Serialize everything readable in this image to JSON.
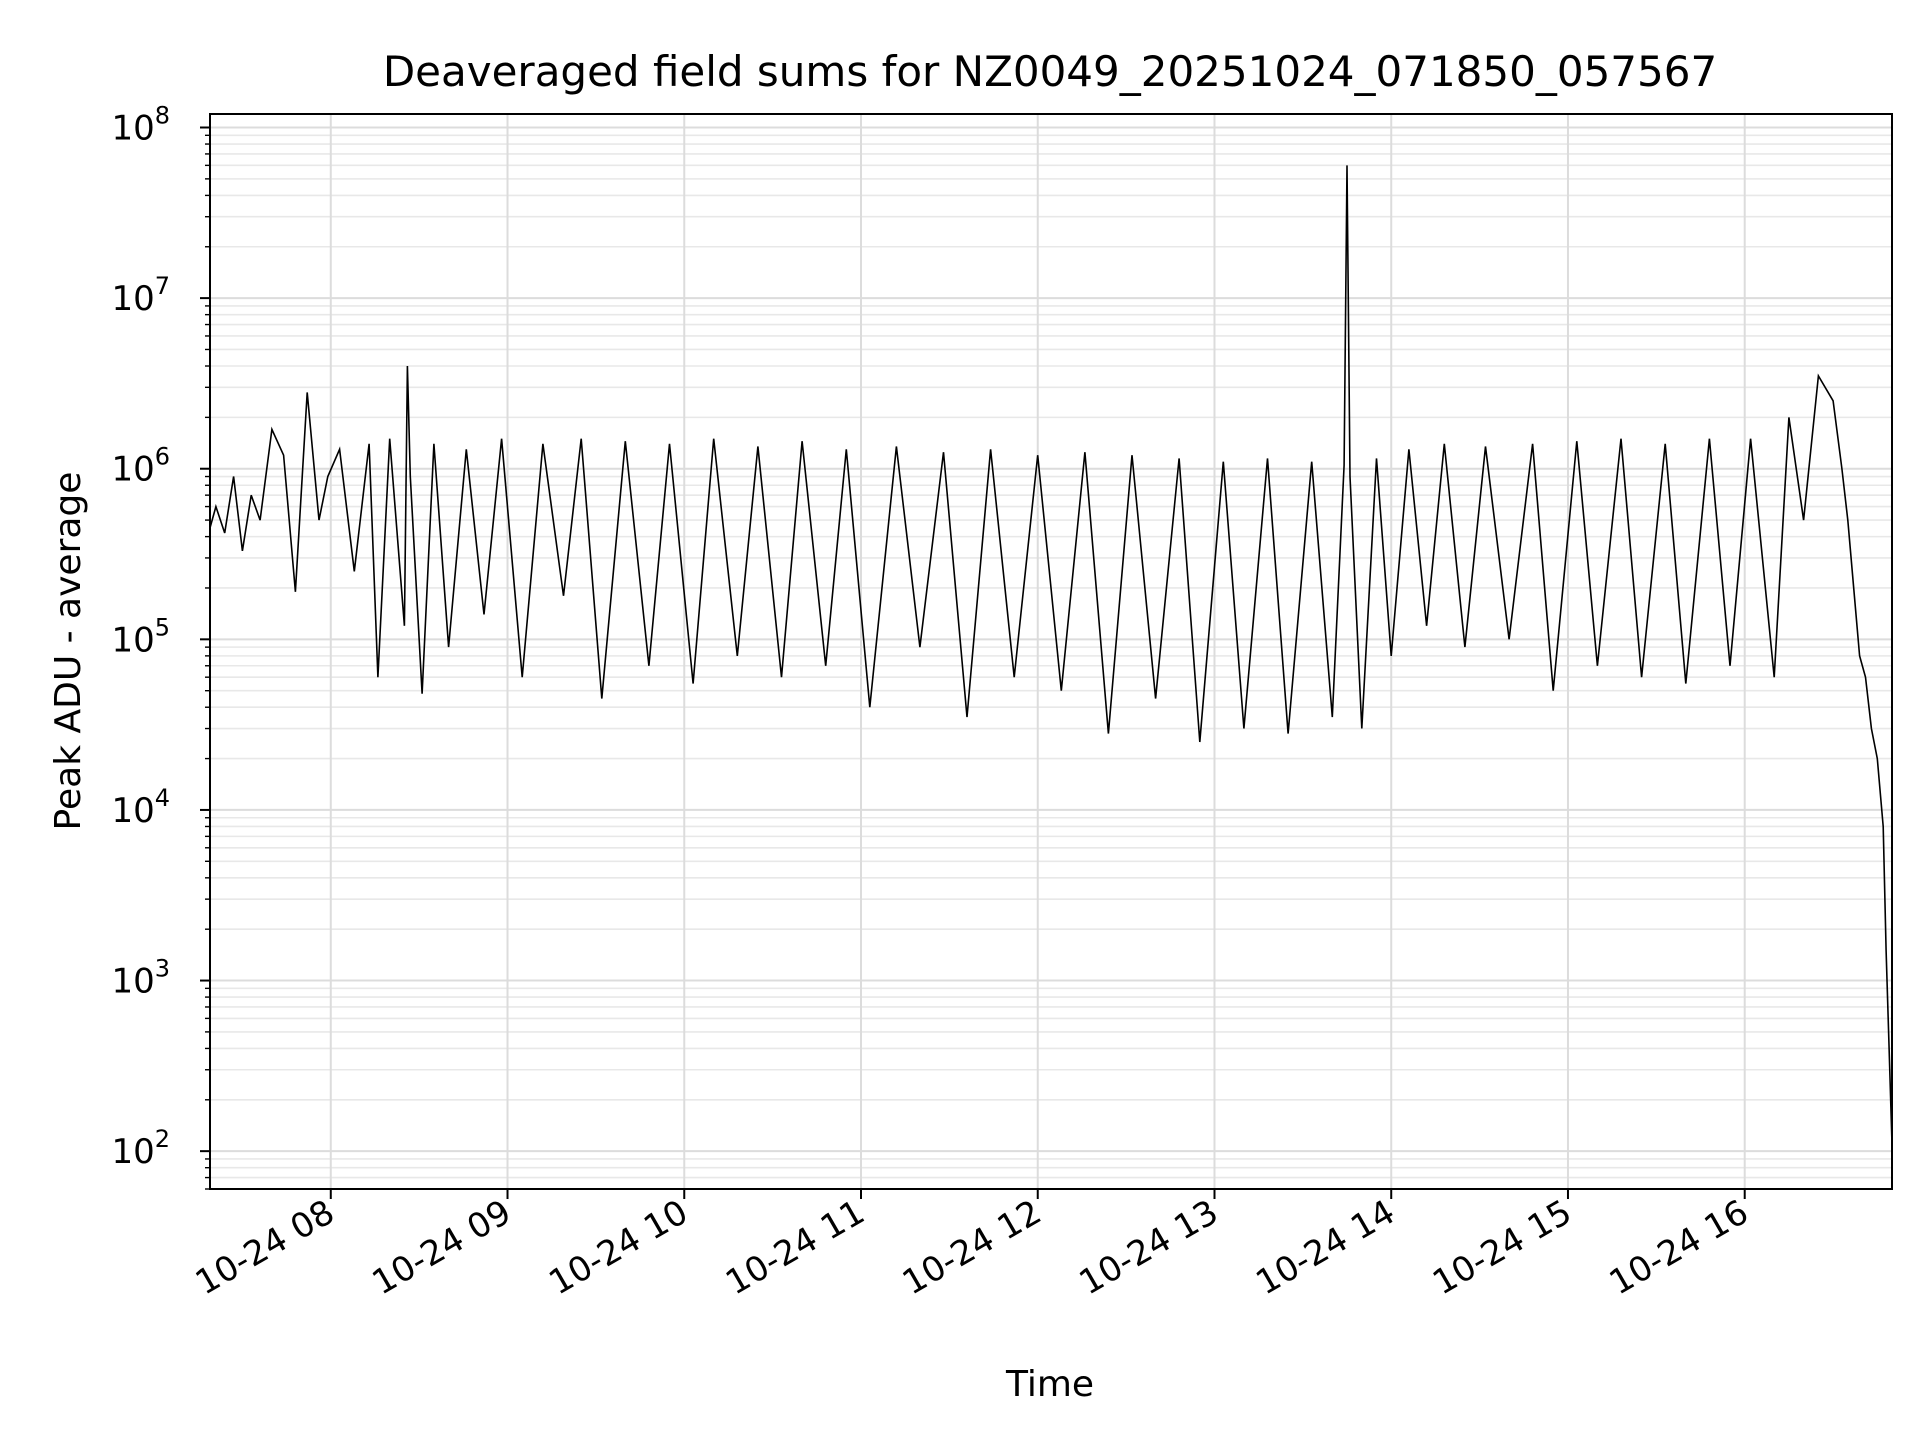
{
  "chart_data": {
    "type": "line",
    "title": "Deaveraged field sums for NZ0049_20251024_071850_057567",
    "xlabel": "Time",
    "ylabel": "Peak ADU - average",
    "y_scale": "log",
    "ylim": [
      60,
      120000000
    ],
    "xlim": [
      "2025-10-24 07:19",
      "2025-10-24 16:50"
    ],
    "grid": true,
    "legend": "none",
    "line_color": "#000000",
    "x_tick_labels": [
      "10-24 08",
      "10-24 09",
      "10-24 10",
      "10-24 11",
      "10-24 12",
      "10-24 13",
      "10-24 14",
      "10-24 15",
      "10-24 16"
    ],
    "y_tick_labels": [
      {
        "value": 100,
        "base": "10",
        "exp": "2"
      },
      {
        "value": 1000,
        "base": "10",
        "exp": "3"
      },
      {
        "value": 10000,
        "base": "10",
        "exp": "4"
      },
      {
        "value": 100000,
        "base": "10",
        "exp": "5"
      },
      {
        "value": 1000000,
        "base": "10",
        "exp": "6"
      },
      {
        "value": 10000000,
        "base": "10",
        "exp": "7"
      },
      {
        "value": 100000000,
        "base": "10",
        "exp": "8"
      }
    ],
    "series": [
      {
        "x": [
          "2025-10-24 07:19",
          "2025-10-24 07:21",
          "2025-10-24 07:24",
          "2025-10-24 07:27",
          "2025-10-24 07:30",
          "2025-10-24 07:33",
          "2025-10-24 07:36",
          "2025-10-24 07:40",
          "2025-10-24 07:44",
          "2025-10-24 07:48",
          "2025-10-24 07:52",
          "2025-10-24 07:56",
          "2025-10-24 07:59",
          "2025-10-24 08:03",
          "2025-10-24 08:08",
          "2025-10-24 08:13",
          "2025-10-24 08:16",
          "2025-10-24 08:20",
          "2025-10-24 08:25",
          "2025-10-24 08:26",
          "2025-10-24 08:27",
          "2025-10-24 08:31",
          "2025-10-24 08:35",
          "2025-10-24 08:40",
          "2025-10-24 08:46",
          "2025-10-24 08:52",
          "2025-10-24 08:58",
          "2025-10-24 09:05",
          "2025-10-24 09:12",
          "2025-10-24 09:19",
          "2025-10-24 09:25",
          "2025-10-24 09:32",
          "2025-10-24 09:40",
          "2025-10-24 09:48",
          "2025-10-24 09:55",
          "2025-10-24 10:03",
          "2025-10-24 10:10",
          "2025-10-24 10:18",
          "2025-10-24 10:25",
          "2025-10-24 10:33",
          "2025-10-24 10:40",
          "2025-10-24 10:48",
          "2025-10-24 10:55",
          "2025-10-24 11:03",
          "2025-10-24 11:12",
          "2025-10-24 11:20",
          "2025-10-24 11:28",
          "2025-10-24 11:36",
          "2025-10-24 11:44",
          "2025-10-24 11:52",
          "2025-10-24 12:00",
          "2025-10-24 12:08",
          "2025-10-24 12:16",
          "2025-10-24 12:24",
          "2025-10-24 12:32",
          "2025-10-24 12:40",
          "2025-10-24 12:48",
          "2025-10-24 12:55",
          "2025-10-24 13:03",
          "2025-10-24 13:10",
          "2025-10-24 13:18",
          "2025-10-24 13:25",
          "2025-10-24 13:33",
          "2025-10-24 13:40",
          "2025-10-24 13:44",
          "2025-10-24 13:45",
          "2025-10-24 13:46",
          "2025-10-24 13:50",
          "2025-10-24 13:55",
          "2025-10-24 14:00",
          "2025-10-24 14:06",
          "2025-10-24 14:12",
          "2025-10-24 14:18",
          "2025-10-24 14:25",
          "2025-10-24 14:32",
          "2025-10-24 14:40",
          "2025-10-24 14:48",
          "2025-10-24 14:55",
          "2025-10-24 15:03",
          "2025-10-24 15:10",
          "2025-10-24 15:18",
          "2025-10-24 15:25",
          "2025-10-24 15:33",
          "2025-10-24 15:40",
          "2025-10-24 15:48",
          "2025-10-24 15:55",
          "2025-10-24 16:02",
          "2025-10-24 16:10",
          "2025-10-24 16:15",
          "2025-10-24 16:20",
          "2025-10-24 16:25",
          "2025-10-24 16:30",
          "2025-10-24 16:33",
          "2025-10-24 16:35",
          "2025-10-24 16:37",
          "2025-10-24 16:39",
          "2025-10-24 16:41",
          "2025-10-24 16:43",
          "2025-10-24 16:45",
          "2025-10-24 16:47",
          "2025-10-24 16:48",
          "2025-10-24 16:49",
          "2025-10-24 16:50"
        ],
        "y": [
          450000,
          600000,
          420000,
          900000,
          330000,
          700000,
          500000,
          1700000,
          1200000,
          190000,
          2800000,
          500000,
          900000,
          1300000,
          250000,
          1400000,
          60000,
          1500000,
          120000,
          4000000,
          900000,
          48000,
          1400000,
          90000,
          1300000,
          140000,
          1500000,
          60000,
          1400000,
          180000,
          1500000,
          45000,
          1450000,
          70000,
          1400000,
          55000,
          1500000,
          80000,
          1350000,
          60000,
          1450000,
          70000,
          1300000,
          40000,
          1350000,
          90000,
          1250000,
          35000,
          1300000,
          60000,
          1200000,
          50000,
          1250000,
          28000,
          1200000,
          45000,
          1150000,
          25000,
          1100000,
          30000,
          1150000,
          28000,
          1100000,
          35000,
          1050000,
          60000000,
          900000,
          30000,
          1150000,
          80000,
          1300000,
          120000,
          1400000,
          90000,
          1350000,
          100000,
          1400000,
          50000,
          1450000,
          70000,
          1500000,
          60000,
          1400000,
          55000,
          1500000,
          70000,
          1500000,
          60000,
          2000000,
          500000,
          3500000,
          2500000,
          1000000,
          500000,
          200000,
          80000,
          60000,
          30000,
          20000,
          8000,
          1500,
          400,
          110
        ]
      }
    ]
  }
}
